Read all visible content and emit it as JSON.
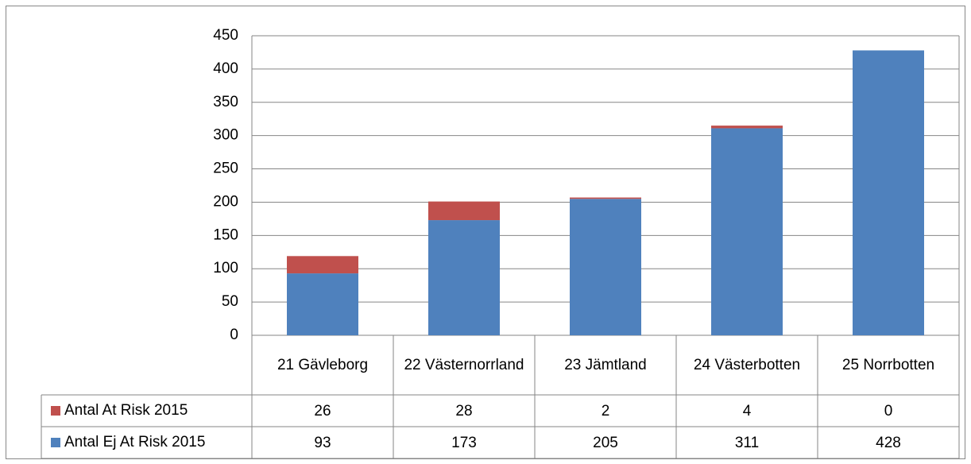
{
  "chart_data": {
    "type": "stacked_bar",
    "categories": [
      "21 Gävleborg",
      "22 Västernorrland",
      "23 Jämtland",
      "24 Västerbotten",
      "25 Norrbotten"
    ],
    "series": [
      {
        "name": "Antal At Risk 2015",
        "color": "#c0504d",
        "values": [
          26,
          28,
          2,
          4,
          0
        ]
      },
      {
        "name": "Antal Ej At Risk 2015",
        "color": "#4f81bd",
        "values": [
          93,
          173,
          205,
          311,
          428
        ]
      }
    ],
    "ylim": [
      0,
      450
    ],
    "yticks": [
      0,
      50,
      100,
      150,
      200,
      250,
      300,
      350,
      400,
      450
    ],
    "grid": true
  }
}
